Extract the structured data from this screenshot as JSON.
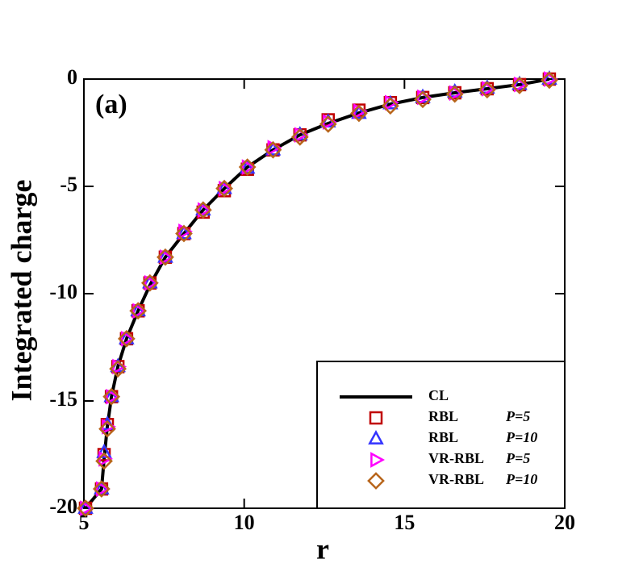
{
  "chart_data": {
    "type": "line",
    "annotation": "(a)",
    "x_label": "r",
    "y_label": "Integrated charge",
    "x": [
      5.05,
      5.55,
      5.63,
      5.73,
      5.86,
      6.06,
      6.33,
      6.69,
      7.06,
      7.54,
      8.12,
      8.72,
      9.38,
      10.1,
      10.9,
      11.74,
      12.62,
      13.58,
      14.56,
      15.57,
      16.57,
      17.58,
      18.59,
      19.52
    ],
    "xlim": [
      5,
      20
    ],
    "xticks": [
      5,
      10,
      15,
      20
    ],
    "ylim": [
      -20,
      0
    ],
    "yticks": [
      0,
      -5,
      -10,
      -15,
      -20
    ],
    "legend": "lower right",
    "series": [
      {
        "name": "CL",
        "color": "#000000",
        "values": [
          -20,
          -19.1,
          -17.7,
          -16.2,
          -14.8,
          -13.4,
          -12.1,
          -10.8,
          -9.6,
          -8.3,
          -7.2,
          -6.1,
          -5.1,
          -4.1,
          -3.3,
          -2.6,
          -2.07,
          -1.58,
          -1.17,
          -0.86,
          -0.64,
          -0.45,
          -0.26,
          0
        ]
      },
      {
        "name": "RBL",
        "param": "P=5",
        "marker": "square",
        "color": "#c00000",
        "values": [
          -20,
          -19.1,
          -17.5,
          -16.1,
          -14.8,
          -13.4,
          -12.1,
          -10.8,
          -9.5,
          -8.3,
          -7.2,
          -6.2,
          -5.2,
          -4.2,
          -3.3,
          -2.6,
          -1.9,
          -1.45,
          -1.1,
          -0.86,
          -0.64,
          -0.45,
          -0.26,
          0
        ]
      },
      {
        "name": "RBL",
        "param": "P=10",
        "marker": "triangle-up",
        "color": "#3333ff",
        "values": [
          -20,
          -19.1,
          -17.4,
          -16.1,
          -14.8,
          -13.4,
          -12.1,
          -10.8,
          -9.5,
          -8.3,
          -7.2,
          -6.1,
          -5.1,
          -4.15,
          -3.3,
          -2.6,
          -2.0,
          -1.6,
          -1.15,
          -0.85,
          -0.6,
          -0.42,
          -0.25,
          0
        ]
      },
      {
        "name": "VR-RBL",
        "param": "P=5",
        "marker": "triangle-right",
        "color": "#ff00ff",
        "values": [
          -20,
          -19.1,
          -17.7,
          -16.2,
          -14.8,
          -13.4,
          -12.1,
          -10.8,
          -9.5,
          -8.3,
          -7.1,
          -6.1,
          -5.1,
          -4.1,
          -3.2,
          -2.6,
          -2.0,
          -1.5,
          -1.1,
          -0.85,
          -0.65,
          -0.45,
          -0.25,
          0
        ]
      },
      {
        "name": "VR-RBL",
        "param": "P=10",
        "marker": "diamond",
        "color": "#b8651b",
        "values": [
          -20,
          -19.1,
          -17.8,
          -16.3,
          -14.8,
          -13.5,
          -12.1,
          -10.8,
          -9.5,
          -8.3,
          -7.2,
          -6.1,
          -5.1,
          -4.1,
          -3.3,
          -2.7,
          -2.1,
          -1.6,
          -1.25,
          -0.95,
          -0.7,
          -0.5,
          -0.3,
          -0.05
        ]
      }
    ]
  }
}
